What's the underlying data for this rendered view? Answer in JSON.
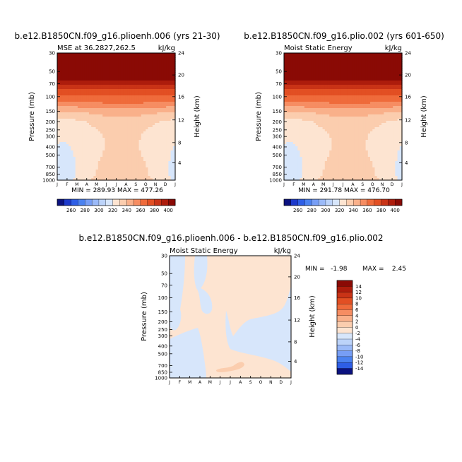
{
  "chart_data": [
    {
      "type": "heatmap",
      "title": "b.e12.B1850CN.f09_g16.plioenh.006 (yrs 21-30)",
      "subtitle_left": "MSE at 36.2827,262.5",
      "subtitle_right": "kJ/kg",
      "ylabel": "Pressure (mb)",
      "ylabel_right": "Height (km)",
      "stats": "MIN = 289.93 MAX = 477.26",
      "months": [
        "J",
        "F",
        "M",
        "A",
        "M",
        "J",
        "J",
        "A",
        "S",
        "O",
        "N",
        "D",
        "J"
      ],
      "pressure_ticks": [
        "30",
        "50",
        "70",
        "100",
        "150",
        "200",
        "250",
        "300",
        "400",
        "500",
        "700",
        "850",
        "1000"
      ],
      "height_ticks": [
        "24",
        "20",
        "16",
        "12",
        "8",
        "4"
      ],
      "ylim": [
        1000,
        30
      ],
      "field": {
        "pressure_levels": [
          1000,
          850,
          700,
          500,
          400,
          300,
          250,
          200,
          150,
          120,
          100,
          85,
          70,
          50,
          30
        ],
        "winter_values": [
          318,
          316,
          317,
          318,
          319,
          321,
          323,
          326,
          340,
          357,
          368,
          377,
          395,
          420,
          470
        ],
        "summer_values": [
          340,
          337,
          336,
          333,
          332,
          332,
          333,
          336,
          345,
          360,
          369,
          378,
          395,
          420,
          470
        ]
      }
    },
    {
      "type": "heatmap",
      "title": "b.e12.B1850CN.f09_g16.plio.002 (yrs 601-650)",
      "subtitle_left": "Moist Static Energy",
      "subtitle_right": "kJ/kg",
      "ylabel": "Pressure (mb)",
      "ylabel_right": "Height (km)",
      "stats": "MIN = 291.78 MAX = 476.70",
      "months": [
        "J",
        "F",
        "M",
        "A",
        "M",
        "J",
        "J",
        "A",
        "S",
        "O",
        "N",
        "D",
        "J"
      ],
      "pressure_ticks": [
        "30",
        "50",
        "70",
        "100",
        "150",
        "200",
        "250",
        "300",
        "400",
        "500",
        "700",
        "850",
        "1000"
      ],
      "height_ticks": [
        "24",
        "20",
        "16",
        "12",
        "8",
        "4"
      ],
      "ylim": [
        1000,
        30
      ],
      "field": {
        "pressure_levels": [
          1000,
          850,
          700,
          500,
          400,
          300,
          250,
          200,
          150,
          120,
          100,
          85,
          70,
          50,
          30
        ],
        "winter_values": [
          318,
          316,
          317,
          318,
          319,
          321,
          323,
          326,
          340,
          357,
          368,
          377,
          395,
          420,
          470
        ],
        "summer_values": [
          340,
          337,
          336,
          333,
          332,
          332,
          333,
          336,
          345,
          360,
          369,
          378,
          395,
          420,
          470
        ]
      }
    },
    {
      "type": "heatmap",
      "title": "b.e12.B1850CN.f09_g16.plioenh.006 - b.e12.B1850CN.f09_g16.plio.002",
      "subtitle_left": "Moist Static Energy",
      "subtitle_right": "kJ/kg",
      "ylabel": "Pressure (mb)",
      "ylabel_right": "Height (km)",
      "stats_min": "MIN =   -1.98",
      "stats_max": "MAX =    2.45",
      "months": [
        "J",
        "F",
        "M",
        "A",
        "M",
        "J",
        "J",
        "A",
        "S",
        "O",
        "N",
        "D",
        "J"
      ],
      "pressure_ticks": [
        "30",
        "50",
        "70",
        "100",
        "150",
        "200",
        "250",
        "300",
        "400",
        "500",
        "700",
        "850",
        "1000"
      ],
      "height_ticks": [
        "24",
        "20",
        "16",
        "12",
        "8",
        "4"
      ],
      "ylim": [
        1000,
        30
      ]
    }
  ],
  "colorbar_top": {
    "labels": [
      "260",
      "280",
      "300",
      "320",
      "340",
      "360",
      "380",
      "400"
    ],
    "colors": [
      "#0b1280",
      "#1d3acb",
      "#2e5ee6",
      "#4b82f0",
      "#779ef5",
      "#9bbaf8",
      "#bcd3f9",
      "#d7e6fb",
      "#fde4d1",
      "#fbcdae",
      "#f9b08a",
      "#f68d62",
      "#ef6b3b",
      "#e24f23",
      "#c93316",
      "#ad1c0c",
      "#8a0a05"
    ]
  },
  "colorbar_diff": {
    "labels": [
      "14",
      "12",
      "10",
      "8",
      "6",
      "4",
      "2",
      "0",
      "-2",
      "-4",
      "-6",
      "-8",
      "-10",
      "-12",
      "-14"
    ],
    "colors": [
      "#8a0a05",
      "#ad1c0c",
      "#c93316",
      "#e24f23",
      "#ef6b3b",
      "#f68d62",
      "#f9b08a",
      "#fbcdae",
      "#fde4d1",
      "#d7e6fb",
      "#bcd3f9",
      "#9bbaf8",
      "#779ef5",
      "#4b82f0",
      "#2e5ee6",
      "#0b1280"
    ]
  }
}
